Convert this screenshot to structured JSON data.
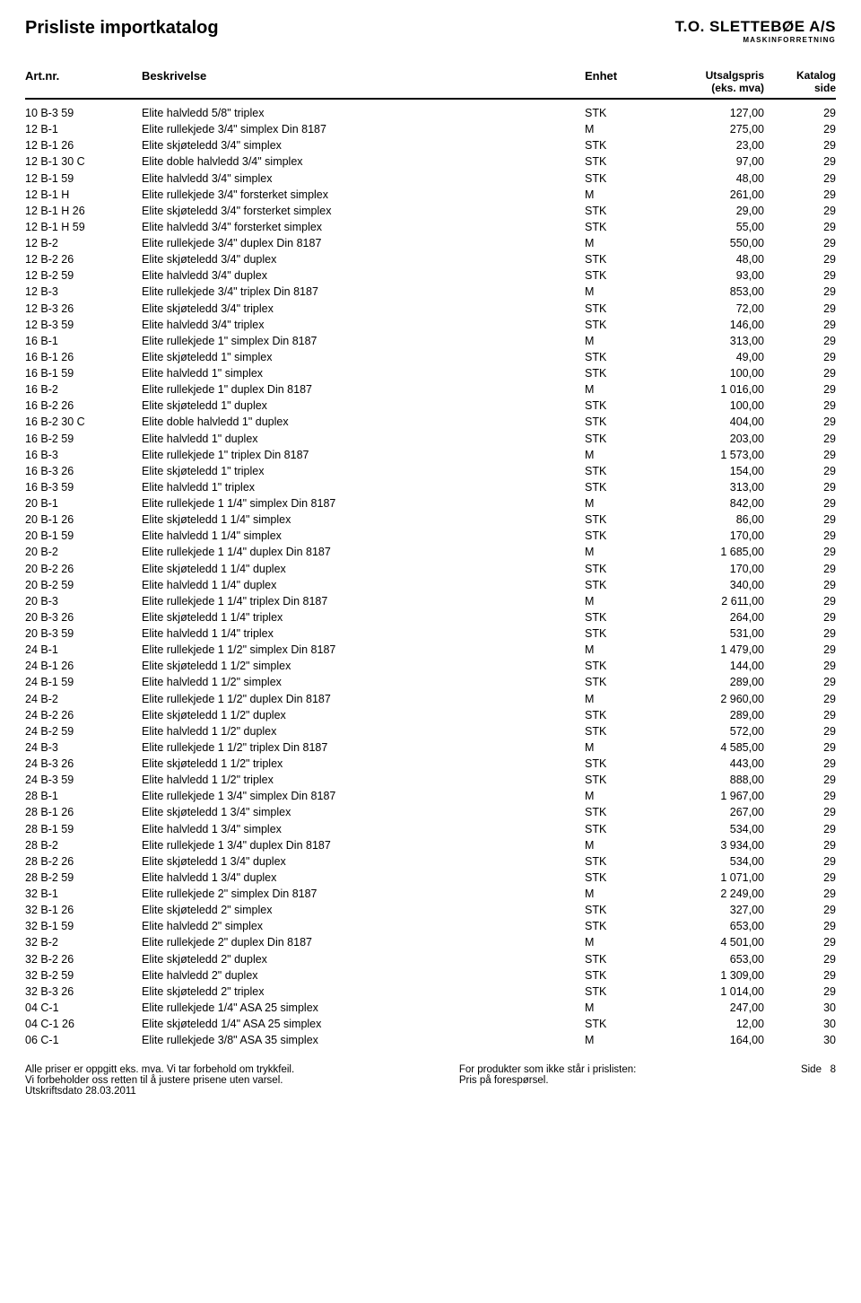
{
  "page_title": "Prisliste importkatalog",
  "logo": {
    "top": "T.O. SLETTEBØE A/S",
    "sub": "MASKINFORRETNING"
  },
  "columns": {
    "art": "Art.nr.",
    "besk": "Beskrivelse",
    "enhet": "Enhet",
    "pris_top": "Utsalgspris",
    "pris_sub": "(eks. mva)",
    "side_top": "Katalog",
    "side_sub": "side"
  },
  "rows": [
    {
      "art": "10 B-3 59",
      "besk": "Elite halvledd 5/8\" triplex",
      "enhet": "STK",
      "pris": "127,00",
      "side": "29"
    },
    {
      "art": "12 B-1",
      "besk": "Elite rullekjede 3/4\" simplex Din 8187",
      "enhet": "M",
      "pris": "275,00",
      "side": "29"
    },
    {
      "art": "12 B-1 26",
      "besk": "Elite skjøteledd 3/4\" simplex",
      "enhet": "STK",
      "pris": "23,00",
      "side": "29"
    },
    {
      "art": "12 B-1 30 C",
      "besk": "Elite doble halvledd 3/4\" simplex",
      "enhet": "STK",
      "pris": "97,00",
      "side": "29"
    },
    {
      "art": "12 B-1 59",
      "besk": "Elite halvledd 3/4\" simplex",
      "enhet": "STK",
      "pris": "48,00",
      "side": "29"
    },
    {
      "art": "12 B-1 H",
      "besk": "Elite rullekjede 3/4\" forsterket simplex",
      "enhet": "M",
      "pris": "261,00",
      "side": "29"
    },
    {
      "art": "12 B-1 H 26",
      "besk": "Elite skjøteledd 3/4\" forsterket simplex",
      "enhet": "STK",
      "pris": "29,00",
      "side": "29"
    },
    {
      "art": "12 B-1 H 59",
      "besk": "Elite halvledd 3/4\" forsterket simplex",
      "enhet": "STK",
      "pris": "55,00",
      "side": "29"
    },
    {
      "art": "12 B-2",
      "besk": "Elite rullekjede 3/4\" duplex Din 8187",
      "enhet": "M",
      "pris": "550,00",
      "side": "29"
    },
    {
      "art": "12 B-2 26",
      "besk": "Elite skjøteledd 3/4\" duplex",
      "enhet": "STK",
      "pris": "48,00",
      "side": "29"
    },
    {
      "art": "12 B-2 59",
      "besk": "Elite halvledd 3/4\" duplex",
      "enhet": "STK",
      "pris": "93,00",
      "side": "29"
    },
    {
      "art": "12 B-3",
      "besk": "Elite rullekjede 3/4\" triplex Din 8187",
      "enhet": "M",
      "pris": "853,00",
      "side": "29"
    },
    {
      "art": "12 B-3 26",
      "besk": "Elite skjøteledd 3/4\" triplex",
      "enhet": "STK",
      "pris": "72,00",
      "side": "29"
    },
    {
      "art": "12 B-3 59",
      "besk": "Elite halvledd 3/4\" triplex",
      "enhet": "STK",
      "pris": "146,00",
      "side": "29"
    },
    {
      "art": "16 B-1",
      "besk": "Elite rullekjede 1\" simplex Din 8187",
      "enhet": "M",
      "pris": "313,00",
      "side": "29"
    },
    {
      "art": "16 B-1 26",
      "besk": "Elite skjøteledd 1\" simplex",
      "enhet": "STK",
      "pris": "49,00",
      "side": "29"
    },
    {
      "art": "16 B-1 59",
      "besk": "Elite halvledd 1\" simplex",
      "enhet": "STK",
      "pris": "100,00",
      "side": "29"
    },
    {
      "art": "16 B-2",
      "besk": "Elite rullekjede 1\" duplex Din 8187",
      "enhet": "M",
      "pris": "1 016,00",
      "side": "29"
    },
    {
      "art": "16 B-2 26",
      "besk": "Elite skjøteledd 1\" duplex",
      "enhet": "STK",
      "pris": "100,00",
      "side": "29"
    },
    {
      "art": "16 B-2 30 C",
      "besk": "Elite doble halvledd 1\" duplex",
      "enhet": "STK",
      "pris": "404,00",
      "side": "29"
    },
    {
      "art": "16 B-2 59",
      "besk": "Elite halvledd 1\" duplex",
      "enhet": "STK",
      "pris": "203,00",
      "side": "29"
    },
    {
      "art": "16 B-3",
      "besk": "Elite rullekjede 1\" triplex Din 8187",
      "enhet": "M",
      "pris": "1 573,00",
      "side": "29"
    },
    {
      "art": "16 B-3 26",
      "besk": "Elite skjøteledd 1\" triplex",
      "enhet": "STK",
      "pris": "154,00",
      "side": "29"
    },
    {
      "art": "16 B-3 59",
      "besk": "Elite halvledd 1\" triplex",
      "enhet": "STK",
      "pris": "313,00",
      "side": "29"
    },
    {
      "art": "20 B-1",
      "besk": "Elite rullekjede 1 1/4\" simplex Din 8187",
      "enhet": "M",
      "pris": "842,00",
      "side": "29"
    },
    {
      "art": "20 B-1 26",
      "besk": "Elite skjøteledd 1 1/4\" simplex",
      "enhet": "STK",
      "pris": "86,00",
      "side": "29"
    },
    {
      "art": "20 B-1 59",
      "besk": "Elite halvledd 1 1/4\" simplex",
      "enhet": "STK",
      "pris": "170,00",
      "side": "29"
    },
    {
      "art": "20 B-2",
      "besk": "Elite rullekjede 1 1/4\" duplex Din 8187",
      "enhet": "M",
      "pris": "1 685,00",
      "side": "29"
    },
    {
      "art": "20 B-2 26",
      "besk": "Elite skjøteledd 1 1/4\" duplex",
      "enhet": "STK",
      "pris": "170,00",
      "side": "29"
    },
    {
      "art": "20 B-2 59",
      "besk": "Elite halvledd 1 1/4\" duplex",
      "enhet": "STK",
      "pris": "340,00",
      "side": "29"
    },
    {
      "art": "20 B-3",
      "besk": "Elite rullekjede 1 1/4\" triplex Din 8187",
      "enhet": "M",
      "pris": "2 611,00",
      "side": "29"
    },
    {
      "art": "20 B-3 26",
      "besk": "Elite skjøteledd 1 1/4\" triplex",
      "enhet": "STK",
      "pris": "264,00",
      "side": "29"
    },
    {
      "art": "20 B-3 59",
      "besk": "Elite halvledd 1 1/4\" triplex",
      "enhet": "STK",
      "pris": "531,00",
      "side": "29"
    },
    {
      "art": "24 B-1",
      "besk": "Elite rullekjede 1 1/2\" simplex Din 8187",
      "enhet": "M",
      "pris": "1 479,00",
      "side": "29"
    },
    {
      "art": "24 B-1 26",
      "besk": "Elite skjøteledd 1 1/2\" simplex",
      "enhet": "STK",
      "pris": "144,00",
      "side": "29"
    },
    {
      "art": "24 B-1 59",
      "besk": "Elite halvledd 1 1/2\" simplex",
      "enhet": "STK",
      "pris": "289,00",
      "side": "29"
    },
    {
      "art": "24 B-2",
      "besk": "Elite rullekjede 1 1/2\" duplex Din 8187",
      "enhet": "M",
      "pris": "2 960,00",
      "side": "29"
    },
    {
      "art": "24 B-2 26",
      "besk": "Elite skjøteledd 1 1/2\" duplex",
      "enhet": "STK",
      "pris": "289,00",
      "side": "29"
    },
    {
      "art": "24 B-2 59",
      "besk": "Elite halvledd 1 1/2\" duplex",
      "enhet": "STK",
      "pris": "572,00",
      "side": "29"
    },
    {
      "art": "24 B-3",
      "besk": "Elite rullekjede 1 1/2\" triplex Din 8187",
      "enhet": "M",
      "pris": "4 585,00",
      "side": "29"
    },
    {
      "art": "24 B-3 26",
      "besk": "Elite skjøteledd 1 1/2\" triplex",
      "enhet": "STK",
      "pris": "443,00",
      "side": "29"
    },
    {
      "art": "24 B-3 59",
      "besk": "Elite halvledd 1 1/2\" triplex",
      "enhet": "STK",
      "pris": "888,00",
      "side": "29"
    },
    {
      "art": "28 B-1",
      "besk": "Elite rullekjede 1 3/4\" simplex Din 8187",
      "enhet": "M",
      "pris": "1 967,00",
      "side": "29"
    },
    {
      "art": "28 B-1 26",
      "besk": "Elite skjøteledd 1 3/4\" simplex",
      "enhet": "STK",
      "pris": "267,00",
      "side": "29"
    },
    {
      "art": "28 B-1 59",
      "besk": "Elite halvledd 1 3/4\" simplex",
      "enhet": "STK",
      "pris": "534,00",
      "side": "29"
    },
    {
      "art": "28 B-2",
      "besk": "Elite rullekjede 1 3/4\" duplex Din 8187",
      "enhet": "M",
      "pris": "3 934,00",
      "side": "29"
    },
    {
      "art": "28 B-2 26",
      "besk": "Elite skjøteledd 1 3/4\" duplex",
      "enhet": "STK",
      "pris": "534,00",
      "side": "29"
    },
    {
      "art": "28 B-2 59",
      "besk": "Elite halvledd 1 3/4\" duplex",
      "enhet": "STK",
      "pris": "1 071,00",
      "side": "29"
    },
    {
      "art": "32 B-1",
      "besk": "Elite rullekjede 2\" simplex Din 8187",
      "enhet": "M",
      "pris": "2 249,00",
      "side": "29"
    },
    {
      "art": "32 B-1 26",
      "besk": "Elite skjøteledd 2\" simplex",
      "enhet": "STK",
      "pris": "327,00",
      "side": "29"
    },
    {
      "art": "32 B-1 59",
      "besk": "Elite halvledd 2\" simplex",
      "enhet": "STK",
      "pris": "653,00",
      "side": "29"
    },
    {
      "art": "32 B-2",
      "besk": "Elite rullekjede 2\" duplex Din 8187",
      "enhet": "M",
      "pris": "4 501,00",
      "side": "29"
    },
    {
      "art": "32 B-2 26",
      "besk": "Elite skjøteledd 2\" duplex",
      "enhet": "STK",
      "pris": "653,00",
      "side": "29"
    },
    {
      "art": "32 B-2 59",
      "besk": "Elite halvledd 2\" duplex",
      "enhet": "STK",
      "pris": "1 309,00",
      "side": "29"
    },
    {
      "art": "32 B-3 26",
      "besk": "Elite skjøteledd 2\" triplex",
      "enhet": "STK",
      "pris": "1 014,00",
      "side": "29"
    },
    {
      "art": "04 C-1",
      "besk": "Elite rullekjede 1/4\" ASA 25 simplex",
      "enhet": "M",
      "pris": "247,00",
      "side": "30"
    },
    {
      "art": "04 C-1 26",
      "besk": "Elite skjøteledd 1/4\" ASA 25 simplex",
      "enhet": "STK",
      "pris": "12,00",
      "side": "30"
    },
    {
      "art": "06 C-1",
      "besk": "Elite rullekjede 3/8\" ASA 35 simplex",
      "enhet": "M",
      "pris": "164,00",
      "side": "30"
    }
  ],
  "footer": {
    "left1": "Alle priser er oppgitt eks. mva. Vi tar forbehold om trykkfeil.",
    "left2": "Vi forbeholder oss retten til å justere prisene uten varsel.",
    "left3": "Utskriftsdato 28.03.2011",
    "mid1": "For produkter som ikke står i prislisten:",
    "mid2": "Pris på forespørsel.",
    "right_label": "Side",
    "right_num": "8"
  }
}
